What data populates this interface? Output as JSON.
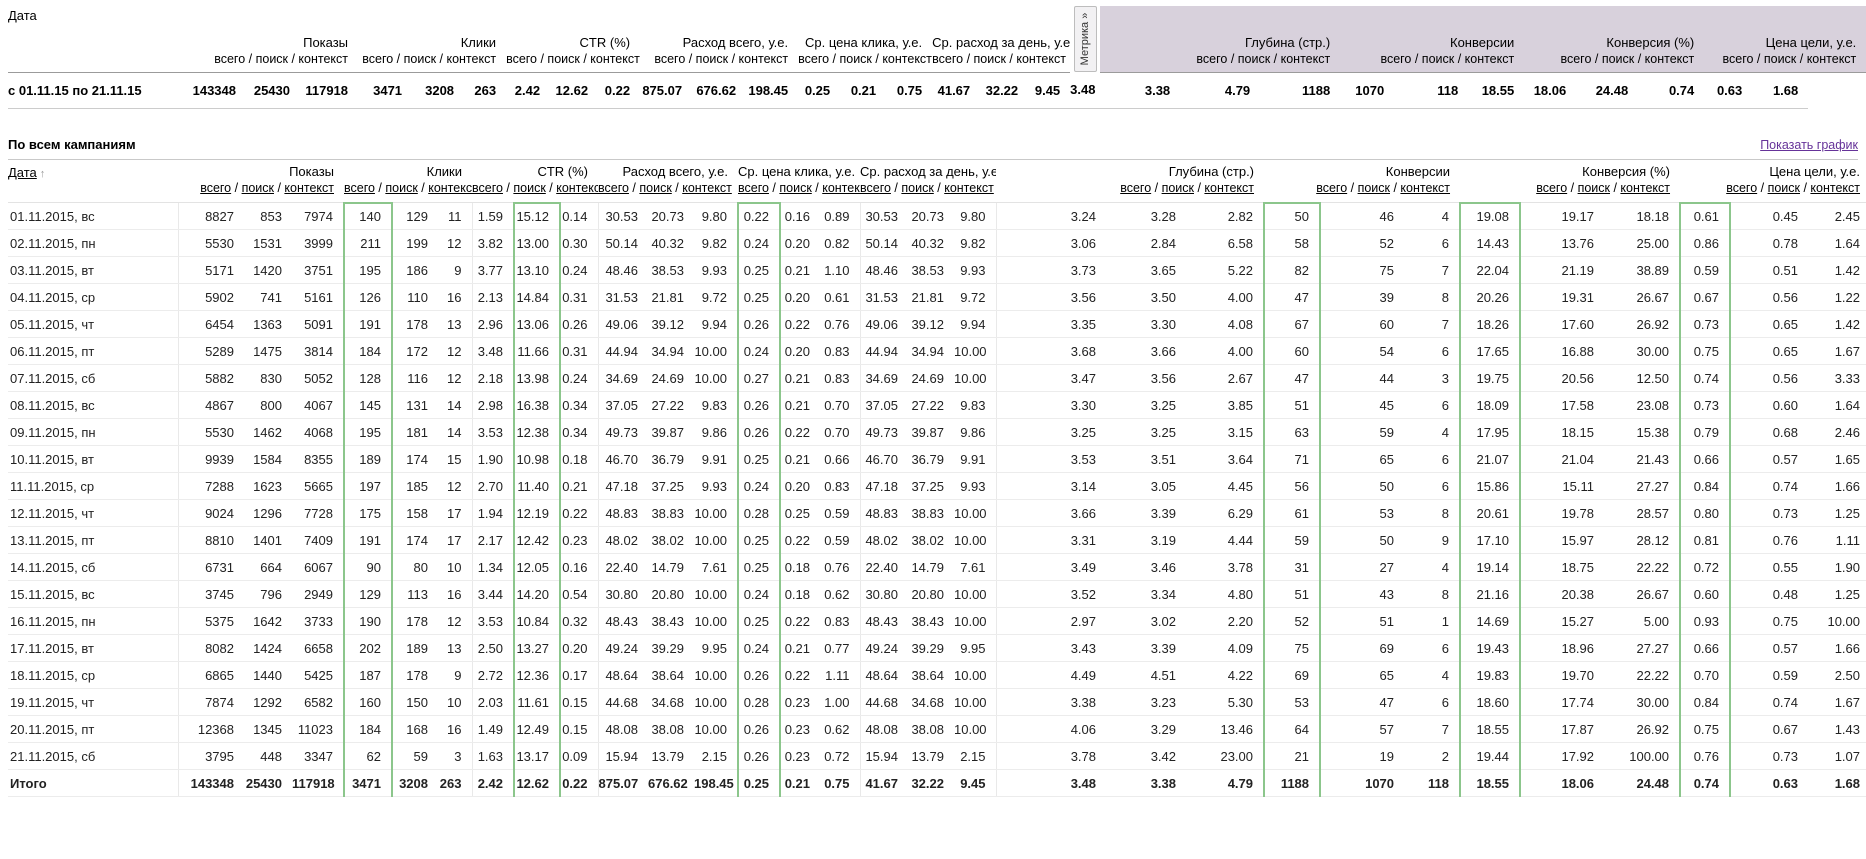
{
  "metrics": [
    "Показы",
    "Клики",
    "CTR (%)",
    "Расход всего, у.е.",
    "Ср. цена клика, у.е.",
    "Ср. расход за день, у.е.",
    "Глубина (стр.)",
    "Конверсии",
    "Конверсия (%)",
    "Цена цели, у.е."
  ],
  "sub_header": "всего / поиск / контекст",
  "sub_links": [
    "всего",
    "поиск",
    "контекст"
  ],
  "summary_table": {
    "date_header": "Дата",
    "metrika_tab": "Метрика »",
    "period_label": "с 01.11.15 по 21.11.15",
    "values": [
      "143348",
      "25430",
      "117918",
      "3471",
      "3208",
      "263",
      "2.42",
      "12.62",
      "0.22",
      "875.07",
      "676.62",
      "198.45",
      "0.25",
      "0.21",
      "0.75",
      "41.67",
      "32.22",
      "9.45",
      "3.48",
      "3.38",
      "4.79",
      "1188",
      "1070",
      "118",
      "18.55",
      "18.06",
      "24.48",
      "0.74",
      "0.63",
      "1.68"
    ]
  },
  "section": {
    "title": "По всем кампаниям",
    "chart_link": "Показать график"
  },
  "main_table": {
    "date_header": "Дата",
    "sort_arrow": "↑",
    "rows": [
      {
        "date": "01.11.2015, вс",
        "weekend": true,
        "values": [
          "8827",
          "853",
          "7974",
          "140",
          "129",
          "11",
          "1.59",
          "15.12",
          "0.14",
          "30.53",
          "20.73",
          "9.80",
          "0.22",
          "0.16",
          "0.89",
          "30.53",
          "20.73",
          "9.80",
          "3.24",
          "3.28",
          "2.82",
          "50",
          "46",
          "4",
          "19.08",
          "19.17",
          "18.18",
          "0.61",
          "0.45",
          "2.45"
        ]
      },
      {
        "date": "02.11.2015, пн",
        "weekend": false,
        "values": [
          "5530",
          "1531",
          "3999",
          "211",
          "199",
          "12",
          "3.82",
          "13.00",
          "0.30",
          "50.14",
          "40.32",
          "9.82",
          "0.24",
          "0.20",
          "0.82",
          "50.14",
          "40.32",
          "9.82",
          "3.06",
          "2.84",
          "6.58",
          "58",
          "52",
          "6",
          "14.43",
          "13.76",
          "25.00",
          "0.86",
          "0.78",
          "1.64"
        ]
      },
      {
        "date": "03.11.2015, вт",
        "weekend": false,
        "values": [
          "5171",
          "1420",
          "3751",
          "195",
          "186",
          "9",
          "3.77",
          "13.10",
          "0.24",
          "48.46",
          "38.53",
          "9.93",
          "0.25",
          "0.21",
          "1.10",
          "48.46",
          "38.53",
          "9.93",
          "3.73",
          "3.65",
          "5.22",
          "82",
          "75",
          "7",
          "22.04",
          "21.19",
          "38.89",
          "0.59",
          "0.51",
          "1.42"
        ]
      },
      {
        "date": "04.11.2015, ср",
        "weekend": false,
        "values": [
          "5902",
          "741",
          "5161",
          "126",
          "110",
          "16",
          "2.13",
          "14.84",
          "0.31",
          "31.53",
          "21.81",
          "9.72",
          "0.25",
          "0.20",
          "0.61",
          "31.53",
          "21.81",
          "9.72",
          "3.56",
          "3.50",
          "4.00",
          "47",
          "39",
          "8",
          "20.26",
          "19.31",
          "26.67",
          "0.67",
          "0.56",
          "1.22"
        ]
      },
      {
        "date": "05.11.2015, чт",
        "weekend": false,
        "values": [
          "6454",
          "1363",
          "5091",
          "191",
          "178",
          "13",
          "2.96",
          "13.06",
          "0.26",
          "49.06",
          "39.12",
          "9.94",
          "0.26",
          "0.22",
          "0.76",
          "49.06",
          "39.12",
          "9.94",
          "3.35",
          "3.30",
          "4.08",
          "67",
          "60",
          "7",
          "18.26",
          "17.60",
          "26.92",
          "0.73",
          "0.65",
          "1.42"
        ]
      },
      {
        "date": "06.11.2015, пт",
        "weekend": false,
        "values": [
          "5289",
          "1475",
          "3814",
          "184",
          "172",
          "12",
          "3.48",
          "11.66",
          "0.31",
          "44.94",
          "34.94",
          "10.00",
          "0.24",
          "0.20",
          "0.83",
          "44.94",
          "34.94",
          "10.00",
          "3.68",
          "3.66",
          "4.00",
          "60",
          "54",
          "6",
          "17.65",
          "16.88",
          "30.00",
          "0.75",
          "0.65",
          "1.67"
        ]
      },
      {
        "date": "07.11.2015, сб",
        "weekend": true,
        "values": [
          "5882",
          "830",
          "5052",
          "128",
          "116",
          "12",
          "2.18",
          "13.98",
          "0.24",
          "34.69",
          "24.69",
          "10.00",
          "0.27",
          "0.21",
          "0.83",
          "34.69",
          "24.69",
          "10.00",
          "3.47",
          "3.56",
          "2.67",
          "47",
          "44",
          "3",
          "19.75",
          "20.56",
          "12.50",
          "0.74",
          "0.56",
          "3.33"
        ]
      },
      {
        "date": "08.11.2015, вс",
        "weekend": true,
        "values": [
          "4867",
          "800",
          "4067",
          "145",
          "131",
          "14",
          "2.98",
          "16.38",
          "0.34",
          "37.05",
          "27.22",
          "9.83",
          "0.26",
          "0.21",
          "0.70",
          "37.05",
          "27.22",
          "9.83",
          "3.30",
          "3.25",
          "3.85",
          "51",
          "45",
          "6",
          "18.09",
          "17.58",
          "23.08",
          "0.73",
          "0.60",
          "1.64"
        ]
      },
      {
        "date": "09.11.2015, пн",
        "weekend": false,
        "values": [
          "5530",
          "1462",
          "4068",
          "195",
          "181",
          "14",
          "3.53",
          "12.38",
          "0.34",
          "49.73",
          "39.87",
          "9.86",
          "0.26",
          "0.22",
          "0.70",
          "49.73",
          "39.87",
          "9.86",
          "3.25",
          "3.25",
          "3.15",
          "63",
          "59",
          "4",
          "17.95",
          "18.15",
          "15.38",
          "0.79",
          "0.68",
          "2.46"
        ]
      },
      {
        "date": "10.11.2015, вт",
        "weekend": false,
        "values": [
          "9939",
          "1584",
          "8355",
          "189",
          "174",
          "15",
          "1.90",
          "10.98",
          "0.18",
          "46.70",
          "36.79",
          "9.91",
          "0.25",
          "0.21",
          "0.66",
          "46.70",
          "36.79",
          "9.91",
          "3.53",
          "3.51",
          "3.64",
          "71",
          "65",
          "6",
          "21.07",
          "21.04",
          "21.43",
          "0.66",
          "0.57",
          "1.65"
        ]
      },
      {
        "date": "11.11.2015, ср",
        "weekend": false,
        "values": [
          "7288",
          "1623",
          "5665",
          "197",
          "185",
          "12",
          "2.70",
          "11.40",
          "0.21",
          "47.18",
          "37.25",
          "9.93",
          "0.24",
          "0.20",
          "0.83",
          "47.18",
          "37.25",
          "9.93",
          "3.14",
          "3.05",
          "4.45",
          "56",
          "50",
          "6",
          "15.86",
          "15.11",
          "27.27",
          "0.84",
          "0.74",
          "1.66"
        ]
      },
      {
        "date": "12.11.2015, чт",
        "weekend": false,
        "values": [
          "9024",
          "1296",
          "7728",
          "175",
          "158",
          "17",
          "1.94",
          "12.19",
          "0.22",
          "48.83",
          "38.83",
          "10.00",
          "0.28",
          "0.25",
          "0.59",
          "48.83",
          "38.83",
          "10.00",
          "3.66",
          "3.39",
          "6.29",
          "61",
          "53",
          "8",
          "20.61",
          "19.78",
          "28.57",
          "0.80",
          "0.73",
          "1.25"
        ]
      },
      {
        "date": "13.11.2015, пт",
        "weekend": false,
        "values": [
          "8810",
          "1401",
          "7409",
          "191",
          "174",
          "17",
          "2.17",
          "12.42",
          "0.23",
          "48.02",
          "38.02",
          "10.00",
          "0.25",
          "0.22",
          "0.59",
          "48.02",
          "38.02",
          "10.00",
          "3.31",
          "3.19",
          "4.44",
          "59",
          "50",
          "9",
          "17.10",
          "15.97",
          "28.12",
          "0.81",
          "0.76",
          "1.11"
        ]
      },
      {
        "date": "14.11.2015, сб",
        "weekend": true,
        "values": [
          "6731",
          "664",
          "6067",
          "90",
          "80",
          "10",
          "1.34",
          "12.05",
          "0.16",
          "22.40",
          "14.79",
          "7.61",
          "0.25",
          "0.18",
          "0.76",
          "22.40",
          "14.79",
          "7.61",
          "3.49",
          "3.46",
          "3.78",
          "31",
          "27",
          "4",
          "19.14",
          "18.75",
          "22.22",
          "0.72",
          "0.55",
          "1.90"
        ]
      },
      {
        "date": "15.11.2015, вс",
        "weekend": true,
        "values": [
          "3745",
          "796",
          "2949",
          "129",
          "113",
          "16",
          "3.44",
          "14.20",
          "0.54",
          "30.80",
          "20.80",
          "10.00",
          "0.24",
          "0.18",
          "0.62",
          "30.80",
          "20.80",
          "10.00",
          "3.52",
          "3.34",
          "4.80",
          "51",
          "43",
          "8",
          "21.16",
          "20.38",
          "26.67",
          "0.60",
          "0.48",
          "1.25"
        ]
      },
      {
        "date": "16.11.2015, пн",
        "weekend": false,
        "values": [
          "5375",
          "1642",
          "3733",
          "190",
          "178",
          "12",
          "3.53",
          "10.84",
          "0.32",
          "48.43",
          "38.43",
          "10.00",
          "0.25",
          "0.22",
          "0.83",
          "48.43",
          "38.43",
          "10.00",
          "2.97",
          "3.02",
          "2.20",
          "52",
          "51",
          "1",
          "14.69",
          "15.27",
          "5.00",
          "0.93",
          "0.75",
          "10.00"
        ]
      },
      {
        "date": "17.11.2015, вт",
        "weekend": false,
        "values": [
          "8082",
          "1424",
          "6658",
          "202",
          "189",
          "13",
          "2.50",
          "13.27",
          "0.20",
          "49.24",
          "39.29",
          "9.95",
          "0.24",
          "0.21",
          "0.77",
          "49.24",
          "39.29",
          "9.95",
          "3.43",
          "3.39",
          "4.09",
          "75",
          "69",
          "6",
          "19.43",
          "18.96",
          "27.27",
          "0.66",
          "0.57",
          "1.66"
        ]
      },
      {
        "date": "18.11.2015, ср",
        "weekend": false,
        "values": [
          "6865",
          "1440",
          "5425",
          "187",
          "178",
          "9",
          "2.72",
          "12.36",
          "0.17",
          "48.64",
          "38.64",
          "10.00",
          "0.26",
          "0.22",
          "1.11",
          "48.64",
          "38.64",
          "10.00",
          "4.49",
          "4.51",
          "4.22",
          "69",
          "65",
          "4",
          "19.83",
          "19.70",
          "22.22",
          "0.70",
          "0.59",
          "2.50"
        ]
      },
      {
        "date": "19.11.2015, чт",
        "weekend": false,
        "values": [
          "7874",
          "1292",
          "6582",
          "160",
          "150",
          "10",
          "2.03",
          "11.61",
          "0.15",
          "44.68",
          "34.68",
          "10.00",
          "0.28",
          "0.23",
          "1.00",
          "44.68",
          "34.68",
          "10.00",
          "3.38",
          "3.23",
          "5.30",
          "53",
          "47",
          "6",
          "18.60",
          "17.74",
          "30.00",
          "0.84",
          "0.74",
          "1.67"
        ]
      },
      {
        "date": "20.11.2015, пт",
        "weekend": false,
        "values": [
          "12368",
          "1345",
          "11023",
          "184",
          "168",
          "16",
          "1.49",
          "12.49",
          "0.15",
          "48.08",
          "38.08",
          "10.00",
          "0.26",
          "0.23",
          "0.62",
          "48.08",
          "38.08",
          "10.00",
          "4.06",
          "3.29",
          "13.46",
          "64",
          "57",
          "7",
          "18.55",
          "17.87",
          "26.92",
          "0.75",
          "0.67",
          "1.43"
        ]
      },
      {
        "date": "21.11.2015, сб",
        "weekend": true,
        "values": [
          "3795",
          "448",
          "3347",
          "62",
          "59",
          "3",
          "1.63",
          "13.17",
          "0.09",
          "15.94",
          "13.79",
          "2.15",
          "0.26",
          "0.23",
          "0.72",
          "15.94",
          "13.79",
          "2.15",
          "3.78",
          "3.42",
          "23.00",
          "21",
          "19",
          "2",
          "19.44",
          "17.92",
          "100.00",
          "0.76",
          "0.73",
          "1.07"
        ]
      }
    ],
    "total": {
      "label": "Итого",
      "values": [
        "143348",
        "25430",
        "117918",
        "3471",
        "3208",
        "263",
        "2.42",
        "12.62",
        "0.22",
        "875.07",
        "676.62",
        "198.45",
        "0.25",
        "0.21",
        "0.75",
        "41.67",
        "32.22",
        "9.45",
        "3.48",
        "3.38",
        "4.79",
        "1188",
        "1070",
        "118",
        "18.55",
        "18.06",
        "24.48",
        "0.74",
        "0.63",
        "1.68"
      ]
    }
  },
  "highlighted_metric_columns": [
    "Клики всего",
    "CTR поиск",
    "Ср. цена клика всего",
    "Конверсии всего",
    "Конверсия (%) всего",
    "Цена цели всего"
  ],
  "colors": {
    "highlight_green": "#8cc68c",
    "right_header_bg": "#d8d1dc",
    "link": "#663399",
    "weekend_text": "#a8a8a8"
  }
}
